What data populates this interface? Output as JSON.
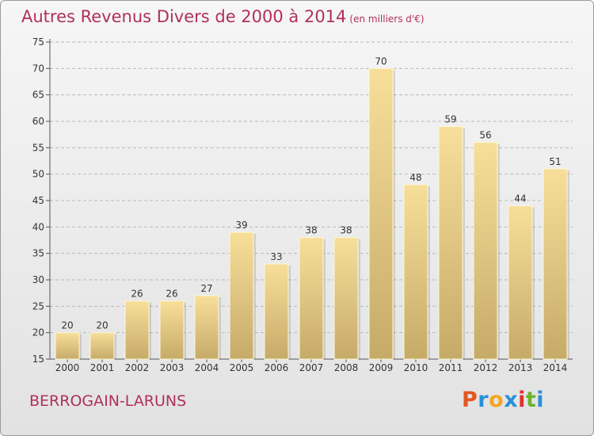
{
  "header": {
    "title": "Autres Revenus Divers de 2000 à 2014",
    "unit": "(en milliers d'€)"
  },
  "footer": {
    "place": "BERROGAIN-LARUNS",
    "logo": "Proxiti"
  },
  "colors": {
    "title": "#b0305a",
    "bar_light": "#f7df9a",
    "bar_dark": "#c6ab68",
    "grid": "#b9b9b9",
    "logo": [
      "#e2561f",
      "#2a8fd8",
      "#f2a623",
      "#2a8fd8",
      "#e0302f",
      "#6ab22f",
      "#2a8fd8"
    ]
  },
  "chart_data": {
    "type": "bar",
    "title": "Autres Revenus Divers de 2000 à 2014",
    "subtitle": "(en milliers d'€)",
    "categories": [
      "2000",
      "2001",
      "2002",
      "2003",
      "2004",
      "2005",
      "2006",
      "2007",
      "2008",
      "2009",
      "2010",
      "2011",
      "2012",
      "2013",
      "2014"
    ],
    "values": [
      20,
      20,
      26,
      26,
      27,
      39,
      33,
      38,
      38,
      70,
      48,
      59,
      56,
      44,
      51
    ],
    "ylim": [
      15,
      75
    ],
    "yticks": [
      "15",
      "20",
      "25",
      "30",
      "35",
      "40",
      "45",
      "50",
      "55",
      "60",
      "65",
      "70",
      "75"
    ],
    "grid": true
  }
}
